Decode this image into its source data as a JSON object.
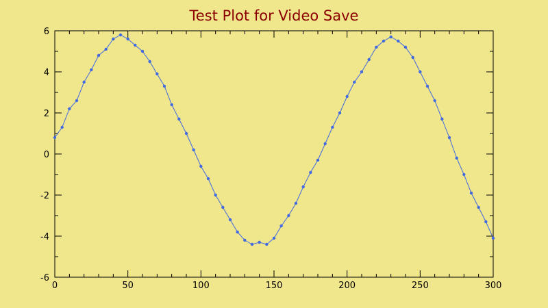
{
  "title": "Test Plot for Video Save",
  "colors": {
    "background": "#f0e68c",
    "title": "#8b0000",
    "line": "#4169e1",
    "axes": "#000000"
  },
  "chart_data": {
    "type": "line",
    "title": "Test Plot for Video Save",
    "xlabel": "",
    "ylabel": "",
    "xlim": [
      0,
      300
    ],
    "ylim": [
      -6,
      6
    ],
    "x_ticks": [
      0,
      50,
      100,
      150,
      200,
      250,
      300
    ],
    "y_ticks": [
      -6,
      -4,
      -2,
      0,
      2,
      4,
      6
    ],
    "x_tick_labels": [
      "0",
      "50",
      "100",
      "150",
      "200",
      "250",
      "300"
    ],
    "y_tick_labels": [
      "-6",
      "-4",
      "-2",
      "0",
      "2",
      "4",
      "6"
    ],
    "grid": false,
    "markers": "circle",
    "series": [
      {
        "color": "#4169e1",
        "x": [
          0,
          5,
          10,
          15,
          20,
          25,
          30,
          35,
          40,
          45,
          50,
          55,
          60,
          65,
          70,
          75,
          80,
          85,
          90,
          95,
          100,
          105,
          110,
          115,
          120,
          125,
          130,
          135,
          140,
          145,
          150,
          155,
          160,
          165,
          170,
          175,
          180,
          185,
          190,
          195,
          200,
          205,
          210,
          215,
          220,
          225,
          230,
          235,
          240,
          245,
          250,
          255,
          260,
          265,
          270,
          275,
          280,
          285,
          290,
          295,
          300
        ],
        "y": [
          0.8,
          1.3,
          2.2,
          2.6,
          3.5,
          4.1,
          4.8,
          5.1,
          5.6,
          5.8,
          5.6,
          5.3,
          5.0,
          4.5,
          3.9,
          3.3,
          2.4,
          1.7,
          1.0,
          0.2,
          -0.6,
          -1.2,
          -2.0,
          -2.6,
          -3.2,
          -3.8,
          -4.2,
          -4.4,
          -4.3,
          -4.4,
          -4.1,
          -3.5,
          -3.0,
          -2.4,
          -1.6,
          -0.9,
          -0.3,
          0.5,
          1.3,
          2.0,
          2.8,
          3.5,
          4.0,
          4.6,
          5.2,
          5.5,
          5.7,
          5.5,
          5.2,
          4.7,
          4.0,
          3.3,
          2.6,
          1.7,
          0.8,
          -0.2,
          -1.0,
          -1.9,
          -2.6,
          -3.3,
          -4.1
        ]
      }
    ]
  }
}
